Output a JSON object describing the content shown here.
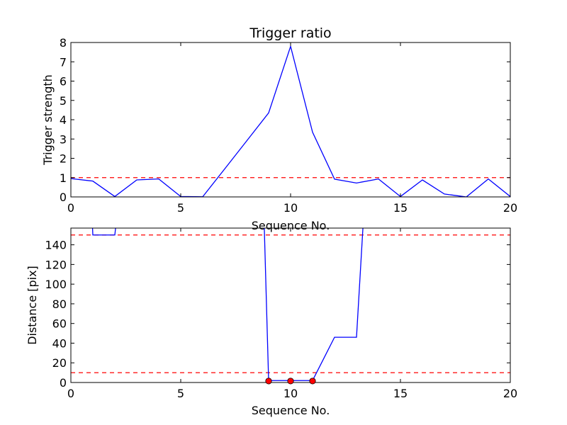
{
  "colors": {
    "line": "#0000ff",
    "threshold": "#ff0000",
    "marker_fill": "#ff0000",
    "marker_edge": "#000000",
    "axes": "#000000",
    "background": "#ffffff"
  },
  "chart_data": [
    {
      "type": "line",
      "title": "Trigger ratio",
      "xlabel": "Sequence No.",
      "ylabel": "Trigger strength",
      "xlim": [
        0,
        20
      ],
      "ylim": [
        0,
        8
      ],
      "xticks": [
        "0",
        "5",
        "10",
        "15",
        "20"
      ],
      "yticks": [
        "0",
        "1",
        "2",
        "3",
        "4",
        "5",
        "6",
        "7",
        "8"
      ],
      "grid": false,
      "series": [
        {
          "x": [
            0,
            1,
            2,
            3,
            4,
            5,
            6,
            7,
            8,
            9,
            10,
            11,
            12,
            13,
            14,
            15,
            16,
            17,
            18,
            19,
            20
          ],
          "values": [
            0.95,
            0.82,
            0.02,
            0.88,
            0.93,
            0.02,
            0.01,
            1.45,
            2.9,
            4.35,
            7.8,
            3.35,
            0.92,
            0.72,
            0.93,
            0.02,
            0.88,
            0.15,
            0.0,
            0.93,
            0.02
          ]
        }
      ],
      "hlines": [
        1.0
      ]
    },
    {
      "type": "line",
      "title": "",
      "xlabel": "Sequence No.",
      "ylabel": "Distance [pix]",
      "xlim": [
        0,
        20
      ],
      "ylim": [
        0,
        157
      ],
      "xticks": [
        "0",
        "5",
        "10",
        "15",
        "20"
      ],
      "yticks": [
        "0",
        "20",
        "40",
        "60",
        "80",
        "100",
        "120",
        "140"
      ],
      "grid": false,
      "series": [
        {
          "x": [
            0.98,
            1.0,
            2.0,
            2.05,
            8.8,
            9,
            10,
            11,
            12,
            13,
            13.3
          ],
          "values": [
            160,
            150,
            150,
            160,
            160,
            2,
            2,
            2,
            46,
            46,
            160
          ]
        }
      ],
      "markers": {
        "x": [
          9,
          10,
          11
        ],
        "values": [
          1.5,
          1.5,
          1.5
        ]
      },
      "hlines": [
        150,
        10
      ]
    }
  ]
}
